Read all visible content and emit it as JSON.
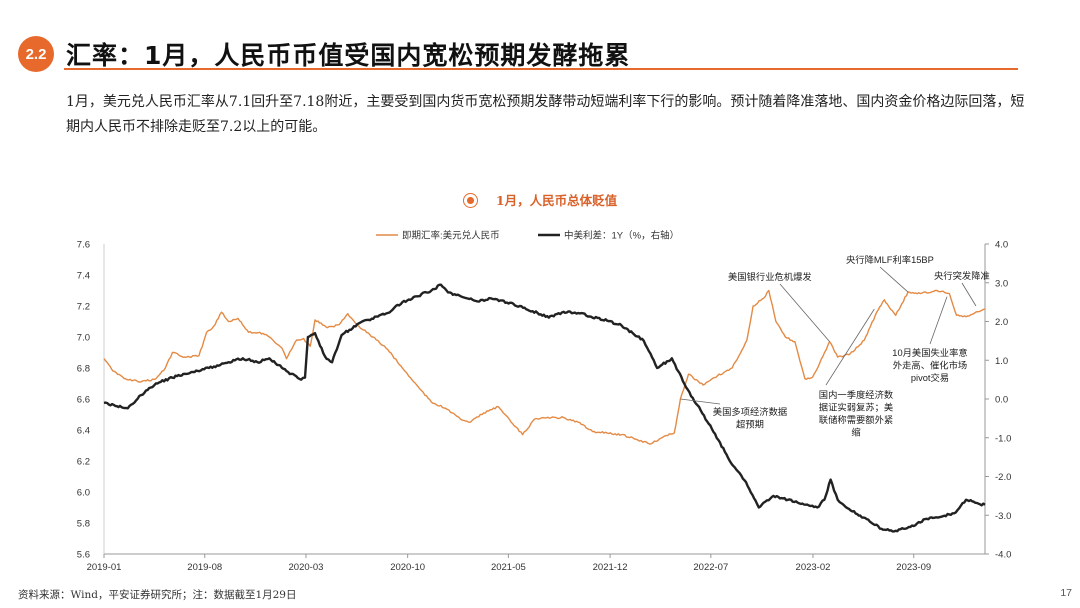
{
  "header": {
    "section_number": "2.2",
    "title": "汇率：1月，人民币币值受国内宽松预期发酵拖累"
  },
  "summary": "1月，美元兑人民币汇率从7.1回升至7.18附近，主要受到国内货币宽松预期发酵带动短端利率下行的影响。预计随着降准落地、国内资金价格边际回落，短期内人民币不排除走贬至7.2以上的可能。",
  "chart_heading": "1月，人民币总体贬值",
  "chart_data": {
    "type": "line",
    "title": "1月，人民币总体贬值",
    "colors": {
      "usdcny": "#e38a45",
      "spread": "#222222"
    },
    "x_ticks": [
      "2019-01",
      "2019-08",
      "2020-03",
      "2020-10",
      "2021-05",
      "2021-12",
      "2022-07",
      "2023-02",
      "2023-09"
    ],
    "x_range": [
      "2019-01-01",
      "2024-01-29"
    ],
    "y_left": {
      "min": 5.6,
      "max": 7.6,
      "ticks": [
        "7.6",
        "7.4",
        "7.2",
        "7.0",
        "6.8",
        "6.6",
        "6.4",
        "6.2",
        "6.0",
        "5.8",
        "5.6"
      ]
    },
    "y_right": {
      "min": -4.0,
      "max": 4.0,
      "ticks": [
        "4.0",
        "3.0",
        "2.0",
        "1.0",
        "0.0",
        "-1.0",
        "-2.0",
        "-3.0",
        "-4.0"
      ]
    },
    "legend_placement": "top-center",
    "series": [
      {
        "name": "即期汇率:美元兑人民币",
        "axis": "left",
        "points": [
          [
            "2019-01-01",
            6.86
          ],
          [
            "2019-01-20",
            6.78
          ],
          [
            "2019-02-15",
            6.73
          ],
          [
            "2019-03-20",
            6.71
          ],
          [
            "2019-04-20",
            6.73
          ],
          [
            "2019-05-10",
            6.8
          ],
          [
            "2019-05-25",
            6.9
          ],
          [
            "2019-06-20",
            6.87
          ],
          [
            "2019-07-20",
            6.88
          ],
          [
            "2019-08-05",
            7.03
          ],
          [
            "2019-08-20",
            7.07
          ],
          [
            "2019-09-05",
            7.16
          ],
          [
            "2019-09-20",
            7.1
          ],
          [
            "2019-10-10",
            7.12
          ],
          [
            "2019-11-01",
            7.03
          ],
          [
            "2019-11-25",
            7.03
          ],
          [
            "2019-12-15",
            7.0
          ],
          [
            "2020-01-10",
            6.93
          ],
          [
            "2020-01-20",
            6.86
          ],
          [
            "2020-02-10",
            6.98
          ],
          [
            "2020-02-25",
            6.99
          ],
          [
            "2020-03-10",
            6.94
          ],
          [
            "2020-03-20",
            7.11
          ],
          [
            "2020-04-15",
            7.06
          ],
          [
            "2020-05-10",
            7.08
          ],
          [
            "2020-05-28",
            7.15
          ],
          [
            "2020-06-20",
            7.07
          ],
          [
            "2020-07-20",
            7.0
          ],
          [
            "2020-08-20",
            6.92
          ],
          [
            "2020-09-20",
            6.8
          ],
          [
            "2020-10-20",
            6.69
          ],
          [
            "2020-11-20",
            6.58
          ],
          [
            "2020-12-20",
            6.54
          ],
          [
            "2021-01-20",
            6.47
          ],
          [
            "2021-02-10",
            6.45
          ],
          [
            "2021-03-10",
            6.51
          ],
          [
            "2021-04-10",
            6.55
          ],
          [
            "2021-05-10",
            6.44
          ],
          [
            "2021-05-31",
            6.37
          ],
          [
            "2021-06-25",
            6.47
          ],
          [
            "2021-07-30",
            6.48
          ],
          [
            "2021-08-25",
            6.48
          ],
          [
            "2021-09-25",
            6.45
          ],
          [
            "2021-10-25",
            6.39
          ],
          [
            "2021-11-25",
            6.38
          ],
          [
            "2021-12-25",
            6.37
          ],
          [
            "2022-01-25",
            6.34
          ],
          [
            "2022-02-25",
            6.31
          ],
          [
            "2022-03-25",
            6.36
          ],
          [
            "2022-04-15",
            6.38
          ],
          [
            "2022-04-28",
            6.6
          ],
          [
            "2022-05-15",
            6.76
          ],
          [
            "2022-06-15",
            6.69
          ],
          [
            "2022-07-15",
            6.75
          ],
          [
            "2022-08-15",
            6.8
          ],
          [
            "2022-09-15",
            6.98
          ],
          [
            "2022-09-28",
            7.2
          ],
          [
            "2022-10-20",
            7.25
          ],
          [
            "2022-10-31",
            7.3
          ],
          [
            "2022-11-15",
            7.1
          ],
          [
            "2022-12-05",
            7.0
          ],
          [
            "2022-12-25",
            6.97
          ],
          [
            "2023-01-15",
            6.73
          ],
          [
            "2023-01-31",
            6.74
          ],
          [
            "2023-02-15",
            6.83
          ],
          [
            "2023-03-08",
            6.97
          ],
          [
            "2023-03-25",
            6.87
          ],
          [
            "2023-04-20",
            6.89
          ],
          [
            "2023-05-20",
            6.98
          ],
          [
            "2023-06-15",
            7.16
          ],
          [
            "2023-07-01",
            7.24
          ],
          [
            "2023-07-25",
            7.14
          ],
          [
            "2023-08-20",
            7.29
          ],
          [
            "2023-09-15",
            7.28
          ],
          [
            "2023-10-20",
            7.3
          ],
          [
            "2023-11-15",
            7.28
          ],
          [
            "2023-11-30",
            7.14
          ],
          [
            "2023-12-20",
            7.13
          ],
          [
            "2024-01-29",
            7.18
          ]
        ]
      },
      {
        "name": "中美利差：1Y（%，右轴）",
        "axis": "right",
        "points": [
          [
            "2019-01-01",
            -0.1
          ],
          [
            "2019-01-25",
            -0.18
          ],
          [
            "2019-02-20",
            -0.24
          ],
          [
            "2019-03-20",
            0.1
          ],
          [
            "2019-04-20",
            0.4
          ],
          [
            "2019-05-25",
            0.55
          ],
          [
            "2019-06-20",
            0.65
          ],
          [
            "2019-08-10",
            0.8
          ],
          [
            "2019-09-20",
            0.95
          ],
          [
            "2019-10-20",
            1.05
          ],
          [
            "2019-11-20",
            0.95
          ],
          [
            "2019-12-15",
            1.05
          ],
          [
            "2020-01-20",
            0.72
          ],
          [
            "2020-02-20",
            0.5
          ],
          [
            "2020-02-28",
            0.55
          ],
          [
            "2020-03-05",
            1.6
          ],
          [
            "2020-03-20",
            1.7
          ],
          [
            "2020-04-10",
            1.1
          ],
          [
            "2020-04-25",
            0.95
          ],
          [
            "2020-05-15",
            1.65
          ],
          [
            "2020-06-20",
            1.95
          ],
          [
            "2020-08-20",
            2.22
          ],
          [
            "2020-09-20",
            2.5
          ],
          [
            "2020-10-20",
            2.65
          ],
          [
            "2020-11-20",
            2.8
          ],
          [
            "2020-12-10",
            2.95
          ],
          [
            "2020-12-25",
            2.75
          ],
          [
            "2021-02-25",
            2.52
          ],
          [
            "2021-03-25",
            2.6
          ],
          [
            "2021-05-25",
            2.4
          ],
          [
            "2021-07-25",
            2.1
          ],
          [
            "2021-08-25",
            2.25
          ],
          [
            "2021-09-25",
            2.22
          ],
          [
            "2021-11-25",
            2.02
          ],
          [
            "2021-12-25",
            1.9
          ],
          [
            "2022-02-10",
            1.5
          ],
          [
            "2022-03-10",
            0.8
          ],
          [
            "2022-04-10",
            1.05
          ],
          [
            "2022-05-10",
            0.3
          ],
          [
            "2022-06-10",
            -0.3
          ],
          [
            "2022-07-10",
            -0.9
          ],
          [
            "2022-08-10",
            -1.6
          ],
          [
            "2022-09-10",
            -2.1
          ],
          [
            "2022-10-10",
            -2.8
          ],
          [
            "2022-11-10",
            -2.5
          ],
          [
            "2022-12-10",
            -2.6
          ],
          [
            "2023-01-10",
            -2.7
          ],
          [
            "2023-02-10",
            -2.8
          ],
          [
            "2023-02-25",
            -2.6
          ],
          [
            "2023-03-10",
            -2.08
          ],
          [
            "2023-03-25",
            -2.6
          ],
          [
            "2023-04-25",
            -2.9
          ],
          [
            "2023-05-25",
            -3.1
          ],
          [
            "2023-06-25",
            -3.35
          ],
          [
            "2023-07-25",
            -3.4
          ],
          [
            "2023-08-25",
            -3.3
          ],
          [
            "2023-09-25",
            -3.1
          ],
          [
            "2023-10-25",
            -3.05
          ],
          [
            "2023-11-25",
            -2.95
          ],
          [
            "2023-12-20",
            -2.6
          ],
          [
            "2024-01-15",
            -2.7
          ],
          [
            "2024-01-29",
            -2.73
          ]
        ]
      }
    ],
    "annotations": [
      {
        "lines": [
          "美国银行业危机爆发"
        ],
        "at": [
          "2023-03-08",
          6.97
        ],
        "axis": "left"
      },
      {
        "lines": [
          "央行降MLF利率15BP"
        ],
        "at": [
          "2023-08-20",
          7.29
        ],
        "axis": "left"
      },
      {
        "lines": [
          "央行突发降准"
        ],
        "at": [
          "2024-01-10",
          7.2
        ],
        "axis": "left"
      },
      {
        "lines": [
          "10月美国失业率意",
          "外走高、催化市场",
          "pivot交易"
        ],
        "at": [
          "2023-11-10",
          7.26
        ],
        "axis": "left"
      },
      {
        "lines": [
          "国内一季度经济数",
          "据证实弱复苏；美",
          "联储称需要额外紧",
          "缩"
        ],
        "at": [
          "2023-06-10",
          7.18
        ],
        "axis": "left"
      },
      {
        "lines": [
          "美国多项经济数据",
          "超预期"
        ],
        "at": [
          "2022-04-28",
          6.6
        ],
        "axis": "left"
      }
    ]
  },
  "footer": {
    "source": "资料来源：Wind，平安证券研究所；注：数据截至1月29日",
    "page_number": "17"
  }
}
